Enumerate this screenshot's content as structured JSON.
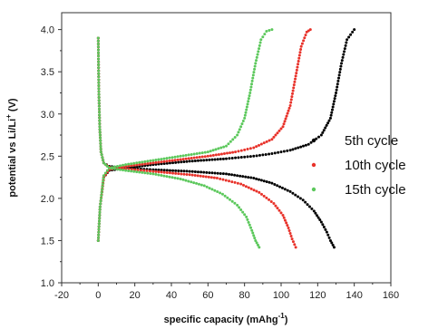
{
  "chart_data": {
    "type": "scatter",
    "title": "",
    "xlabel": "specific capacity (mAhg",
    "xlabel_sup": "-1",
    "xlabel_end": ")",
    "ylabel": "potential vs Li/Li",
    "ylabel_sup": "+",
    "ylabel_end": " (V)",
    "xlim": [
      -20,
      160
    ],
    "ylim": [
      1.0,
      4.2
    ],
    "x_ticks": [
      -20,
      0,
      20,
      40,
      60,
      80,
      100,
      120,
      140,
      160
    ],
    "y_ticks": [
      1.0,
      1.5,
      2.0,
      2.5,
      3.0,
      3.5,
      4.0
    ],
    "x_tick_labels": [
      "-20",
      "0",
      "20",
      "40",
      "60",
      "80",
      "100",
      "120",
      "140",
      "160"
    ],
    "y_tick_labels": [
      "1.0",
      "1.5",
      "2.0",
      "2.5",
      "3.0",
      "3.5",
      "4.0"
    ],
    "grid": false,
    "legend_position": "right",
    "series": [
      {
        "name": "5th cycle",
        "color": "#000000",
        "discharge": [
          [
            0,
            3.9
          ],
          [
            0.3,
            3.3
          ],
          [
            0.8,
            2.85
          ],
          [
            1.5,
            2.55
          ],
          [
            3,
            2.42
          ],
          [
            6,
            2.38
          ],
          [
            15,
            2.36
          ],
          [
            30,
            2.34
          ],
          [
            50,
            2.32
          ],
          [
            70,
            2.29
          ],
          [
            85,
            2.24
          ],
          [
            95,
            2.18
          ],
          [
            105,
            2.08
          ],
          [
            112,
            1.98
          ],
          [
            118,
            1.85
          ],
          [
            122,
            1.72
          ],
          [
            125,
            1.6
          ],
          [
            127,
            1.5
          ],
          [
            129,
            1.42
          ]
        ],
        "charge": [
          [
            0,
            1.5
          ],
          [
            1,
            1.9
          ],
          [
            3,
            2.25
          ],
          [
            6,
            2.33
          ],
          [
            15,
            2.36
          ],
          [
            30,
            2.4
          ],
          [
            50,
            2.44
          ],
          [
            70,
            2.47
          ],
          [
            85,
            2.5
          ],
          [
            95,
            2.53
          ],
          [
            105,
            2.57
          ],
          [
            115,
            2.64
          ],
          [
            122,
            2.75
          ],
          [
            127,
            2.95
          ],
          [
            130,
            3.25
          ],
          [
            133,
            3.6
          ],
          [
            136,
            3.88
          ],
          [
            140,
            4.0
          ]
        ]
      },
      {
        "name": "10th cycle",
        "color": "#e8322a",
        "discharge": [
          [
            0,
            3.9
          ],
          [
            0.3,
            3.3
          ],
          [
            0.8,
            2.85
          ],
          [
            1.5,
            2.55
          ],
          [
            3,
            2.42
          ],
          [
            6,
            2.37
          ],
          [
            15,
            2.35
          ],
          [
            30,
            2.32
          ],
          [
            50,
            2.28
          ],
          [
            65,
            2.24
          ],
          [
            78,
            2.17
          ],
          [
            88,
            2.07
          ],
          [
            96,
            1.94
          ],
          [
            101,
            1.8
          ],
          [
            104,
            1.65
          ],
          [
            106,
            1.52
          ],
          [
            108,
            1.42
          ]
        ],
        "charge": [
          [
            0,
            1.5
          ],
          [
            1,
            1.9
          ],
          [
            3,
            2.25
          ],
          [
            6,
            2.34
          ],
          [
            15,
            2.38
          ],
          [
            30,
            2.42
          ],
          [
            45,
            2.46
          ],
          [
            60,
            2.5
          ],
          [
            75,
            2.55
          ],
          [
            85,
            2.6
          ],
          [
            95,
            2.7
          ],
          [
            101,
            2.85
          ],
          [
            105,
            3.1
          ],
          [
            108,
            3.45
          ],
          [
            111,
            3.8
          ],
          [
            114,
            3.97
          ],
          [
            116,
            4.0
          ]
        ]
      },
      {
        "name": "15th cycle",
        "color": "#5cc85c",
        "discharge": [
          [
            0,
            3.9
          ],
          [
            0.3,
            3.3
          ],
          [
            0.8,
            2.85
          ],
          [
            1.5,
            2.55
          ],
          [
            3,
            2.42
          ],
          [
            6,
            2.36
          ],
          [
            15,
            2.33
          ],
          [
            30,
            2.29
          ],
          [
            45,
            2.23
          ],
          [
            58,
            2.15
          ],
          [
            68,
            2.05
          ],
          [
            76,
            1.92
          ],
          [
            81,
            1.78
          ],
          [
            84,
            1.62
          ],
          [
            86,
            1.5
          ],
          [
            88,
            1.42
          ]
        ],
        "charge": [
          [
            0,
            1.5
          ],
          [
            1,
            1.9
          ],
          [
            3,
            2.27
          ],
          [
            6,
            2.36
          ],
          [
            15,
            2.4
          ],
          [
            30,
            2.45
          ],
          [
            45,
            2.5
          ],
          [
            60,
            2.55
          ],
          [
            70,
            2.62
          ],
          [
            76,
            2.75
          ],
          [
            80,
            2.95
          ],
          [
            83,
            3.25
          ],
          [
            86,
            3.6
          ],
          [
            89,
            3.88
          ],
          [
            92,
            3.98
          ],
          [
            95,
            4.0
          ]
        ]
      }
    ]
  }
}
